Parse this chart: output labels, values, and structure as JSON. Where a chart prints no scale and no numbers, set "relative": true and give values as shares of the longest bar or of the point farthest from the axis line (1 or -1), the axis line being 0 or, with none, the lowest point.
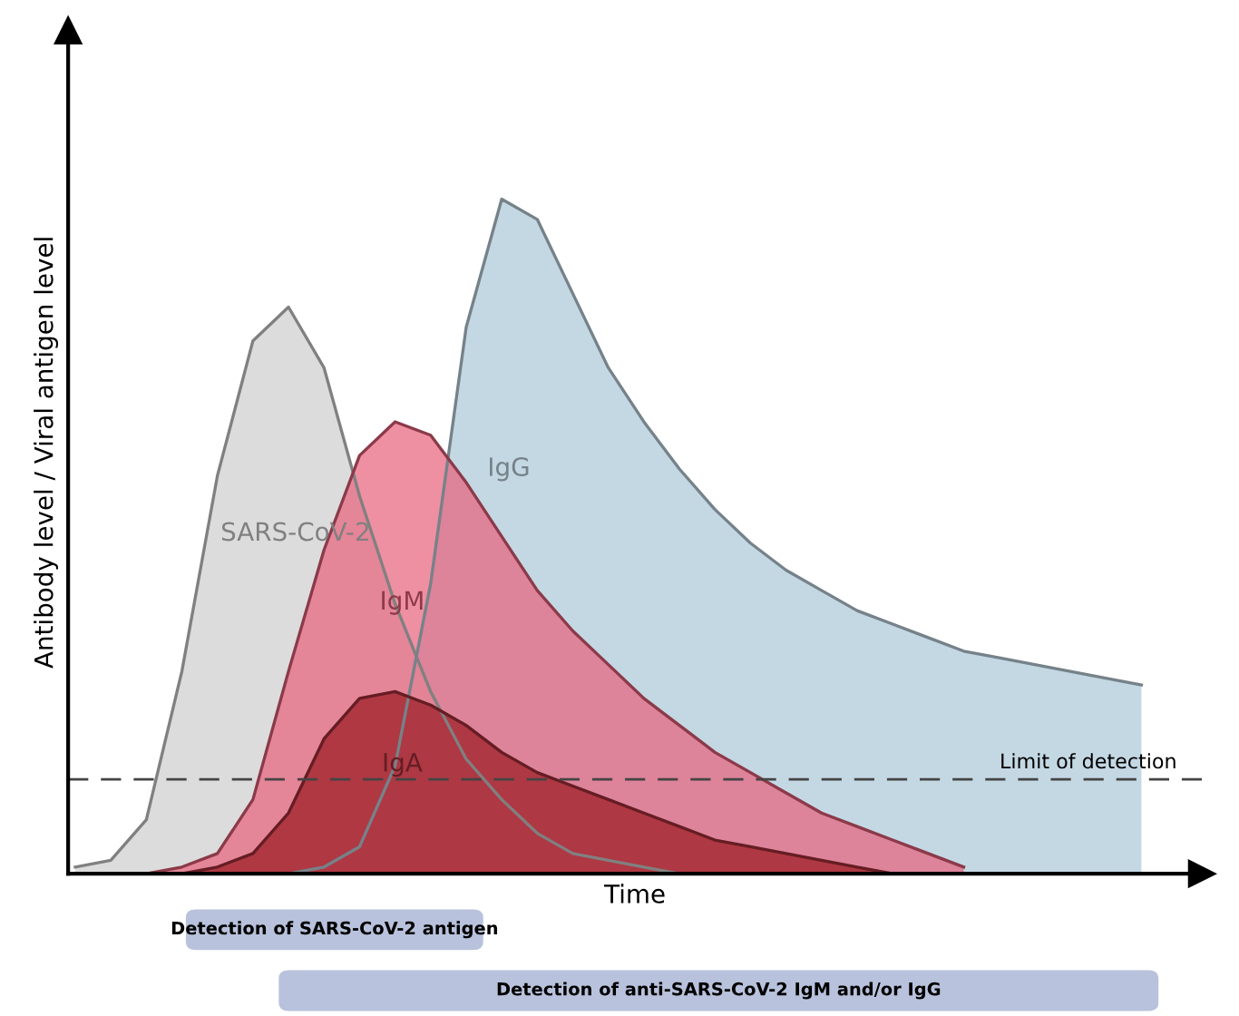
{
  "chart_data": {
    "type": "area",
    "relative": true,
    "xlabel": "Time",
    "ylabel": "Antibody level / Viral antigen level",
    "categories": [
      null,
      null,
      null,
      null,
      null,
      null,
      null,
      null,
      null,
      null,
      null,
      null,
      null,
      null,
      null,
      null,
      null,
      null,
      null,
      null,
      null,
      null,
      null,
      null,
      null,
      null,
      null,
      null,
      null,
      null,
      null,
      null
    ],
    "series": [
      {
        "name": "IgG",
        "color": "#c4d8e4",
        "values": [
          null,
          null,
          null,
          null,
          null,
          null,
          0,
          0.01,
          0.04,
          0.16,
          0.43,
          0.81,
          1.0,
          0.97,
          0.86,
          0.75,
          0.67,
          0.6,
          0.54,
          0.49,
          0.45,
          0.42,
          0.39,
          0.37,
          0.35,
          0.33,
          0.32,
          0.31,
          0.3,
          0.29,
          0.28,
          null
        ]
      },
      {
        "name": "SARS-CoV-2",
        "color": "#d6d6d6",
        "values": [
          0.01,
          0.02,
          0.08,
          0.3,
          0.59,
          0.79,
          0.84,
          0.75,
          0.56,
          0.4,
          0.27,
          0.17,
          0.11,
          0.06,
          0.03,
          0.02,
          0.01,
          0,
          0,
          null,
          null,
          null,
          null,
          null,
          null,
          null,
          null,
          null,
          null,
          null,
          null,
          null
        ]
      },
      {
        "name": "IgM",
        "color": "#e8607a",
        "values": [
          null,
          0,
          0,
          0.01,
          0.03,
          0.11,
          0.3,
          0.48,
          0.62,
          0.67,
          0.65,
          0.58,
          0.5,
          0.42,
          0.36,
          0.31,
          0.26,
          0.22,
          0.18,
          0.15,
          0.12,
          0.09,
          0.07,
          0.05,
          0.03,
          0.01,
          null,
          null,
          null,
          null,
          null,
          null
        ]
      },
      {
        "name": "IgA",
        "color": "#a8303a",
        "values": [
          null,
          null,
          null,
          0,
          0.01,
          0.03,
          0.09,
          0.2,
          0.26,
          0.27,
          0.25,
          0.22,
          0.18,
          0.15,
          0.13,
          0.11,
          0.09,
          0.07,
          0.05,
          0.04,
          0.03,
          0.02,
          0.01,
          0,
          null,
          null,
          null,
          null,
          null,
          null,
          null,
          null
        ]
      }
    ],
    "ref_lines": [
      {
        "axis": "y",
        "value": 0.14,
        "label": "Limit of detection",
        "color": "#444444",
        "line_style": "dashed"
      }
    ],
    "annotations": [
      "Detection of SARS-CoV-2 antigen",
      "Detection of anti-SARS-CoV-2 IgM and/or IgG"
    ],
    "legend": false
  }
}
